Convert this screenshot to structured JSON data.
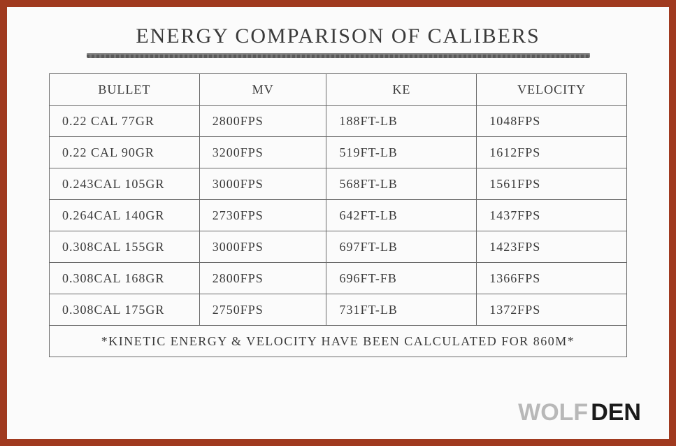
{
  "title": "ENERGY COMPARISON OF CALIBERS",
  "columns": [
    "BULLET",
    "MV",
    "KE",
    "VELOCITY"
  ],
  "rows": [
    [
      "0.22 CAL 77GR",
      "2800FPS",
      "188FT-LB",
      "1048FPS"
    ],
    [
      "0.22 CAL 90GR",
      "3200FPS",
      "519FT-LB",
      "1612FPS"
    ],
    [
      "0.243CAL 105GR",
      "3000FPS",
      "568FT-LB",
      "1561FPS"
    ],
    [
      "0.264CAL 140GR",
      "2730FPS",
      "642FT-LB",
      "1437FPS"
    ],
    [
      "0.308CAL 155GR",
      "3000FPS",
      "697FT-LB",
      "1423FPS"
    ],
    [
      "0.308CAL 168GR",
      "2800FPS",
      "696FT-FB",
      "1366FPS"
    ],
    [
      "0.308CAL 175GR",
      "2750FPS",
      "731FT-LB",
      "1372FPS"
    ]
  ],
  "footnote": "*KINETIC ENERGY & VELOCITY HAVE BEEN CALCULATED FOR 860M*",
  "logo": {
    "part1": "WOLF",
    "part2": "DEN"
  },
  "styling": {
    "border_color": "#a03a1f",
    "background_color": "#fbfbfb",
    "text_color": "#3a3a3a",
    "table_border_color": "#6a6a6a",
    "underline_color": "#5a5a5a",
    "logo_wolf_color": "#b8b8b8",
    "logo_den_color": "#1a1a1a",
    "title_fontsize": 30,
    "cell_fontsize": 18,
    "logo_fontsize": 34,
    "font_family": "handwritten"
  }
}
